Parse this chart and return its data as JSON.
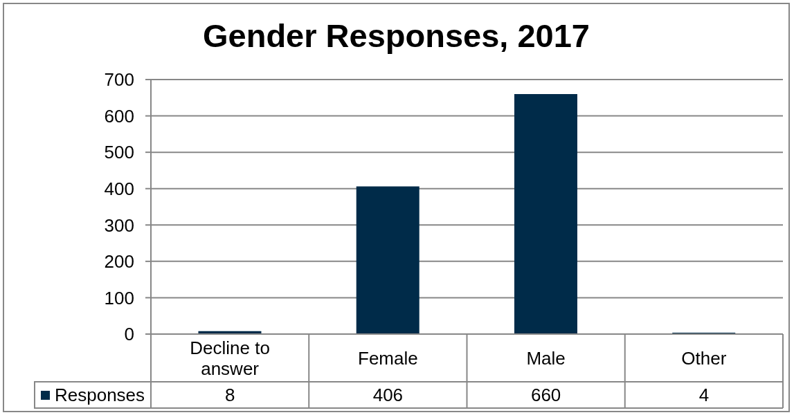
{
  "chart_data": {
    "type": "bar",
    "title": "Gender Responses, 2017",
    "categories": [
      "Decline to answer",
      "Female",
      "Male",
      "Other"
    ],
    "series": [
      {
        "name": "Responses",
        "color": "#002b49",
        "values": [
          8,
          406,
          660,
          4
        ]
      }
    ],
    "ylim": [
      0,
      700
    ],
    "yticks": [
      0,
      100,
      200,
      300,
      400,
      500,
      600,
      700
    ],
    "grid": "y",
    "legend": "bottom",
    "data_labels": true
  }
}
